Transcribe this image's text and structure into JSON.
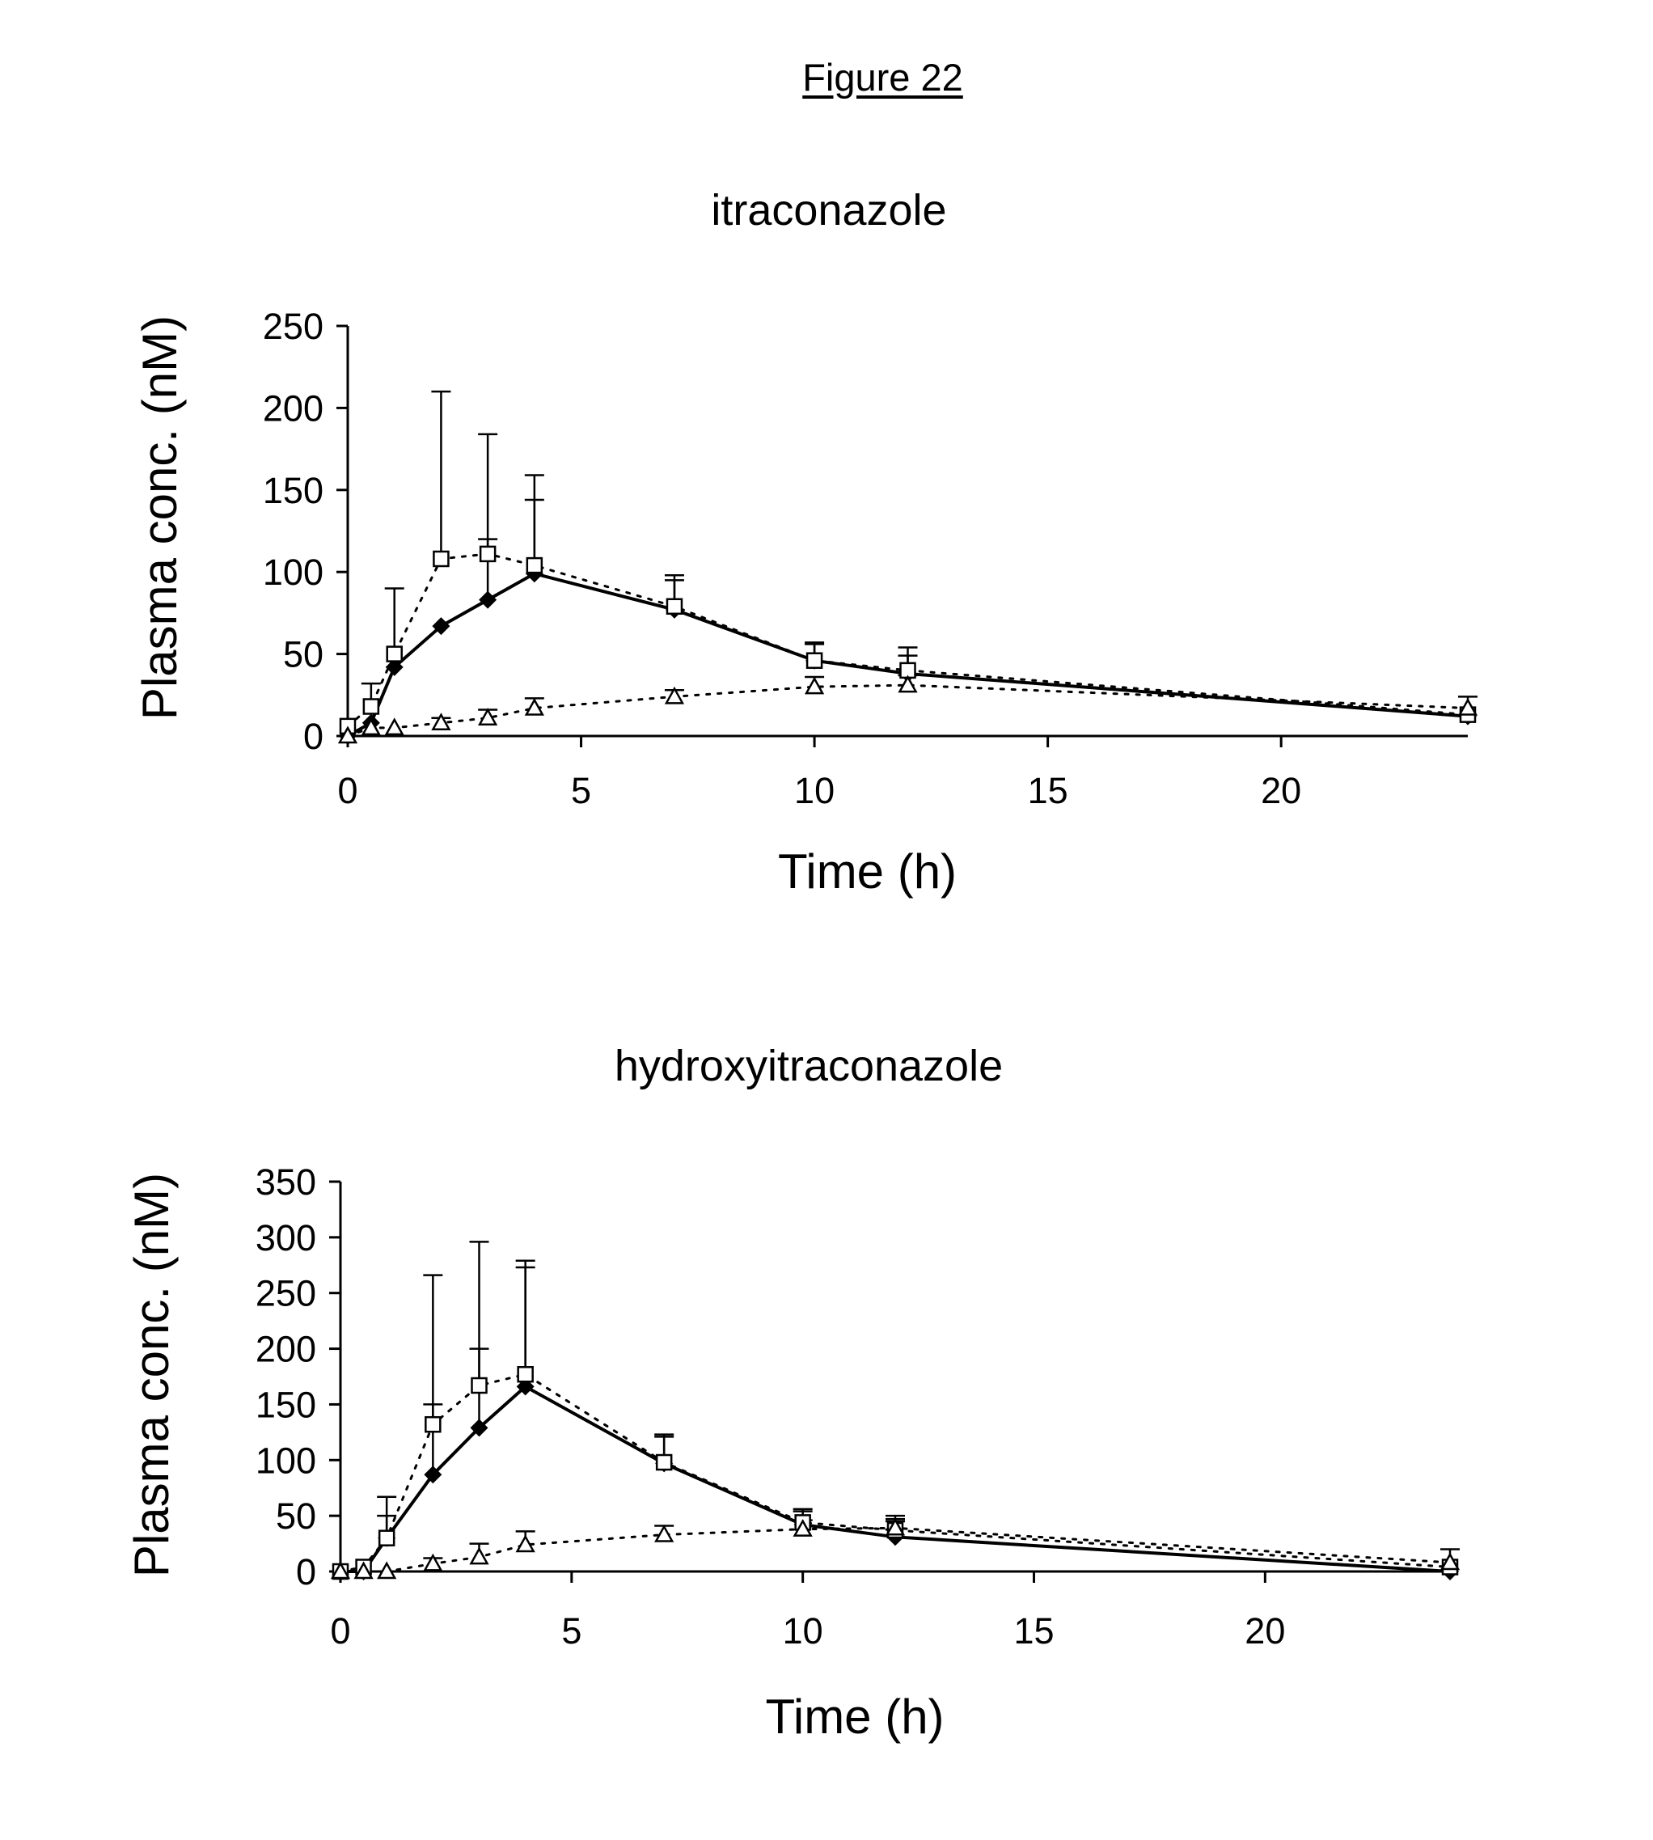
{
  "figure_title": "Figure 22",
  "chart_data": [
    {
      "type": "line",
      "title": "itraconazole",
      "xlabel": "Time (h)",
      "ylabel": "Plasma conc. (nM)",
      "xlim": [
        0,
        24
      ],
      "ylim": [
        0,
        250
      ],
      "xticks": [
        0,
        5,
        10,
        15,
        20
      ],
      "yticks": [
        0,
        50,
        100,
        150,
        200,
        250
      ],
      "grid": false,
      "series": [
        {
          "name": "filled diamond",
          "marker": "diamond",
          "line": "solid",
          "x": [
            0,
            0.5,
            1,
            2,
            3,
            4,
            7,
            10,
            12,
            24
          ],
          "y": [
            0,
            8,
            42,
            67,
            83,
            99,
            77,
            46,
            38,
            12
          ],
          "err": [
            null,
            null,
            null,
            null,
            37,
            45,
            18,
            10,
            11,
            null
          ]
        },
        {
          "name": "open square",
          "marker": "square",
          "line": "dotted",
          "x": [
            0,
            0.5,
            1,
            2,
            3,
            4,
            7,
            10,
            12,
            24
          ],
          "y": [
            6,
            18,
            50,
            108,
            111,
            104,
            79,
            46,
            40,
            13
          ],
          "err": [
            null,
            14,
            40,
            102,
            73,
            55,
            19,
            11,
            14,
            null
          ]
        },
        {
          "name": "open triangle",
          "marker": "triangle",
          "line": "dotted",
          "x": [
            0,
            0.5,
            1,
            2,
            3,
            4,
            7,
            10,
            12,
            24
          ],
          "y": [
            0,
            5,
            5,
            8,
            11,
            17,
            24,
            30,
            31,
            17
          ],
          "err": [
            null,
            null,
            null,
            3,
            5,
            6,
            4,
            6,
            6,
            7
          ]
        }
      ]
    },
    {
      "type": "line",
      "title": "hydroxyitraconazole",
      "xlabel": "Time (h)",
      "ylabel": "Plasma conc. (nM)",
      "xlim": [
        0,
        24
      ],
      "ylim": [
        0,
        350
      ],
      "xticks": [
        0,
        5,
        10,
        15,
        20
      ],
      "yticks": [
        0,
        50,
        100,
        150,
        200,
        250,
        300,
        350
      ],
      "grid": false,
      "series": [
        {
          "name": "filled diamond",
          "marker": "diamond",
          "line": "solid",
          "x": [
            0,
            0.5,
            1,
            2,
            3,
            4,
            7,
            10,
            12,
            24
          ],
          "y": [
            0,
            0,
            30,
            87,
            129,
            166,
            97,
            42,
            31,
            0
          ],
          "err": [
            null,
            null,
            20,
            63,
            71,
            107,
            24,
            12,
            14,
            null
          ]
        },
        {
          "name": "open square",
          "marker": "square",
          "line": "dotted",
          "x": [
            0,
            0.5,
            1,
            2,
            3,
            4,
            7,
            10,
            12,
            24
          ],
          "y": [
            0,
            4,
            30,
            132,
            167,
            177,
            98,
            44,
            37,
            4
          ],
          "err": [
            null,
            null,
            37,
            134,
            129,
            102,
            25,
            12,
            13,
            null
          ]
        },
        {
          "name": "open triangle",
          "marker": "triangle",
          "line": "dotted",
          "x": [
            0,
            0.5,
            1,
            2,
            3,
            4,
            7,
            10,
            12,
            24
          ],
          "y": [
            0,
            0,
            0,
            7,
            13,
            24,
            33,
            38,
            39,
            8
          ],
          "err": [
            null,
            null,
            null,
            5,
            12,
            12,
            8,
            8,
            8,
            12
          ]
        }
      ]
    }
  ]
}
